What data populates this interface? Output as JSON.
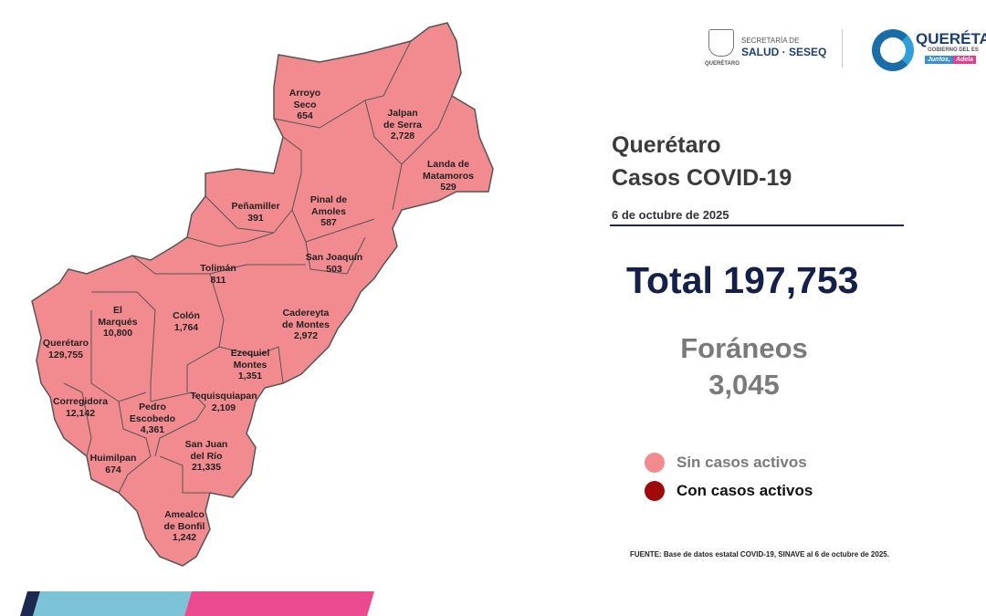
{
  "header": {
    "logo_secretaria": {
      "line1": "SECRETARÍA DE",
      "line2": "SALUD · SESEQ",
      "sub": "QUERÉTARO"
    },
    "logo_gobierno": {
      "name": "QUERÉTA",
      "sub": "GOBIERNO DEL ES",
      "slogan1": "Juntos,",
      "slogan2": "Adela"
    }
  },
  "title": {
    "line1": "Querétaro",
    "line2": "Casos COVID-19",
    "date": "6 de octubre de 2025"
  },
  "total_label": "Total 197,753",
  "foraneos": {
    "label": "Foráneos",
    "value": "3,045"
  },
  "legend": [
    {
      "label": "Sin casos activos",
      "color": "#f28b8f"
    },
    {
      "label": "Con casos activos",
      "color": "#a10a0a"
    }
  ],
  "source": "FUENTE: Base de datos estatal  COVID-19,  SINAVE  al 6 de octubre de 2025.",
  "map": {
    "fill_color": "#f28b8f",
    "municipalities": [
      {
        "name": "Arroyo\nSeco",
        "cases": "654"
      },
      {
        "name": "Jalpan\nde Serra",
        "cases": "2,728"
      },
      {
        "name": "Landa de\nMatamoros",
        "cases": "529"
      },
      {
        "name": "Pinal de\nAmoles",
        "cases": "587"
      },
      {
        "name": "Peñamiller",
        "cases": "391"
      },
      {
        "name": "San Joaquín",
        "cases": "503"
      },
      {
        "name": "Tolimán",
        "cases": "811"
      },
      {
        "name": "Cadereyta\nde Montes",
        "cases": "2,972"
      },
      {
        "name": "El\nMarqués",
        "cases": "10,800"
      },
      {
        "name": "Colón",
        "cases": "1,764"
      },
      {
        "name": "Querétaro",
        "cases": "129,755"
      },
      {
        "name": "Ezequiel\nMontes",
        "cases": "1,351"
      },
      {
        "name": "Tequisquiapan",
        "cases": "2,109"
      },
      {
        "name": "Corregidora",
        "cases": "12,142"
      },
      {
        "name": "Pedro\nEscobedo",
        "cases": "4,361"
      },
      {
        "name": "San Juan\ndel Río",
        "cases": "21,335"
      },
      {
        "name": "Huimilpan",
        "cases": "674"
      },
      {
        "name": "Amealco\nde Bonfil",
        "cases": "1,242"
      }
    ]
  }
}
